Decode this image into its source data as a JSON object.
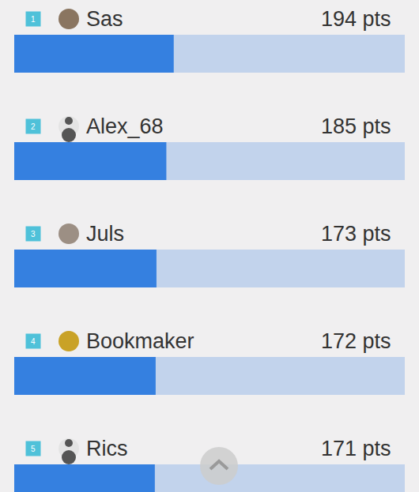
{
  "chart_data": {
    "type": "bar",
    "orientation": "horizontal",
    "categories": [
      "Sas",
      "Alex_68",
      "Juls",
      "Bookmaker",
      "Rics"
    ],
    "ranks": [
      1,
      2,
      3,
      4,
      5
    ],
    "values": [
      194,
      185,
      173,
      172,
      171
    ],
    "value_labels": [
      "194 pts",
      "185 pts",
      "173 pts",
      "172 pts",
      "171 pts"
    ],
    "xlim": [
      0,
      475
    ],
    "xticks": [],
    "tick_labels": false,
    "grid": false,
    "color": "#3580e0"
  }
}
